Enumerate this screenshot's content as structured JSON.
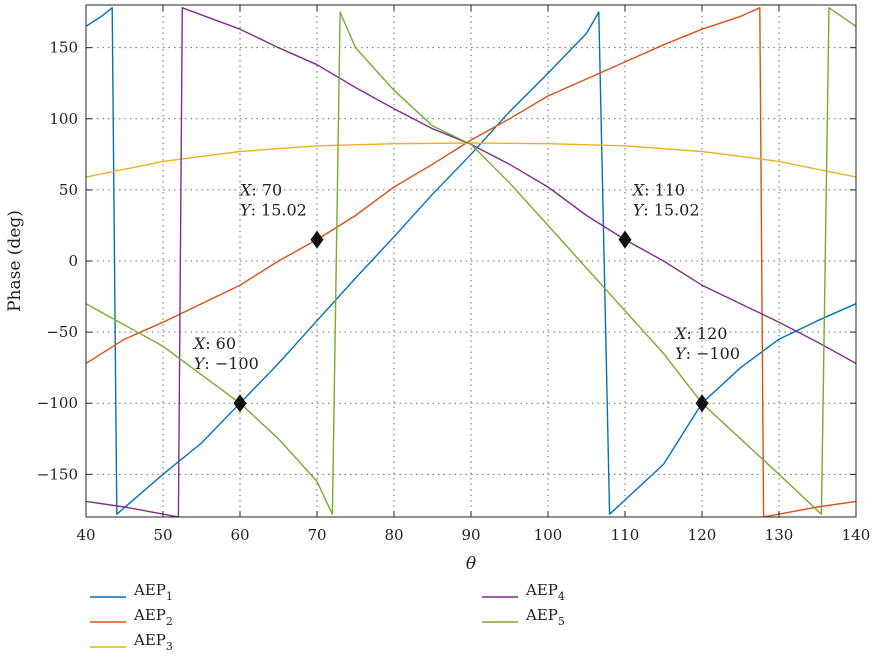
{
  "chart_data": {
    "type": "line",
    "title": "",
    "xlabel": "θ",
    "ylabel": "Phase (deg)",
    "xlim": [
      40,
      140
    ],
    "ylim": [
      -180,
      180
    ],
    "xticks": [
      40,
      50,
      60,
      70,
      80,
      90,
      100,
      110,
      120,
      130,
      140
    ],
    "yticks": [
      -150,
      -100,
      -50,
      0,
      50,
      100,
      150
    ],
    "grid": true,
    "legend_placement": "below-plot",
    "series": [
      {
        "name": "AEP",
        "sub": "1",
        "color": "#0072BD",
        "x": [
          40,
          42,
          43.4,
          44,
          50,
          55,
          60,
          65,
          70,
          75,
          80,
          85,
          90,
          95,
          100,
          105,
          106.6,
          108,
          115,
          120,
          125,
          130,
          135,
          140
        ],
        "y": [
          165,
          172,
          178,
          -178,
          -150,
          -128,
          -100,
          -72,
          -42,
          -12,
          17,
          47,
          75,
          105,
          132,
          160,
          175,
          -178,
          -143,
          -100,
          -75,
          -55,
          -42,
          -30
        ]
      },
      {
        "name": "AEP",
        "sub": "2",
        "color": "#D95319",
        "x": [
          40,
          45,
          50,
          55,
          60,
          65,
          70,
          75,
          80,
          85,
          90,
          95,
          100,
          105,
          110,
          115,
          120,
          125,
          127.5,
          128,
          135,
          140
        ],
        "y": [
          -72,
          -55,
          -43,
          -30,
          -17,
          0,
          15.02,
          32,
          52,
          68,
          85,
          100,
          116,
          128,
          140,
          152,
          163,
          172,
          178,
          -180,
          -173,
          -169
        ]
      },
      {
        "name": "AEP",
        "sub": "3",
        "color": "#EDB120",
        "x": [
          40,
          50,
          60,
          70,
          80,
          90,
          100,
          110,
          120,
          130,
          140
        ],
        "y": [
          59,
          70,
          77,
          81,
          82.5,
          83,
          82.5,
          81,
          77,
          70,
          59
        ]
      },
      {
        "name": "AEP",
        "sub": "4",
        "color": "#7E2F8E",
        "x": [
          40,
          45,
          52,
          52.5,
          60,
          65,
          70,
          75,
          80,
          85,
          90,
          95,
          100,
          105,
          110,
          115,
          120,
          125,
          130,
          135,
          140
        ],
        "y": [
          -169,
          -173,
          -180,
          178,
          163,
          150,
          138,
          122,
          107,
          93,
          82,
          68,
          52,
          32,
          15.02,
          0,
          -17,
          -30,
          -43,
          -57,
          -72
        ]
      },
      {
        "name": "AEP",
        "sub": "5",
        "color": "#77AC30",
        "x": [
          40,
          45,
          50,
          55,
          60,
          65,
          70,
          72,
          73,
          75,
          80,
          85,
          90,
          95,
          100,
          105,
          110,
          115,
          120,
          125,
          130,
          135.5,
          136.5,
          140
        ],
        "y": [
          -30,
          -45,
          -60,
          -80,
          -100,
          -125,
          -155,
          -178,
          175,
          150,
          120,
          95,
          82,
          55,
          25,
          -5,
          -35,
          -65,
          -100,
          -125,
          -150,
          -178,
          178,
          165
        ]
      }
    ],
    "markers": [
      {
        "x": 60,
        "y": -100,
        "label_x": "X: 60",
        "label_y": "Y: −100",
        "label_at": [
          54,
          -62
        ]
      },
      {
        "x": 70,
        "y": 15.02,
        "label_x": "X: 70",
        "label_y": "Y: 15.02",
        "label_at": [
          60,
          46
        ]
      },
      {
        "x": 110,
        "y": 15.02,
        "label_x": "X: 110",
        "label_y": "Y: 15.02",
        "label_at": [
          111,
          46
        ]
      },
      {
        "x": 120,
        "y": -100,
        "label_x": "X: 120",
        "label_y": "Y: −100",
        "label_at": [
          116.5,
          -55
        ]
      }
    ]
  }
}
